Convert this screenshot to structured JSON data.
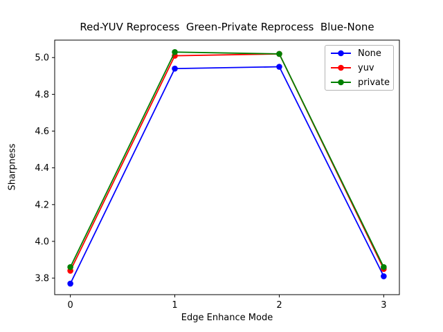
{
  "figure": {
    "background": "#ffffff",
    "spine_color": "#000000"
  },
  "chart_data": {
    "type": "line",
    "title": "Red-YUV Reprocess  Green-Private Reprocess  Blue-None",
    "xlabel": "Edge Enhance Mode",
    "ylabel": "Sharpness",
    "x": [
      0,
      1,
      2,
      3
    ],
    "series": [
      {
        "name": "None",
        "color": "#0000ff",
        "values": [
          3.77,
          4.94,
          4.95,
          3.81
        ]
      },
      {
        "name": "yuv",
        "color": "#ff0000",
        "values": [
          3.84,
          5.01,
          5.02,
          3.85
        ]
      },
      {
        "name": "private",
        "color": "#008000",
        "values": [
          3.86,
          5.03,
          5.02,
          3.86
        ]
      }
    ],
    "marker": "circle",
    "grid": false,
    "xlim": [
      -0.15,
      3.15
    ],
    "ylim": [
      3.71,
      5.095
    ],
    "xticks": {
      "values": [
        0,
        1,
        2,
        3
      ],
      "labels": [
        "0",
        "1",
        "2",
        "3"
      ]
    },
    "yticks": {
      "values": [
        3.8,
        4.0,
        4.2,
        4.4,
        4.6,
        4.8,
        5.0
      ],
      "labels": [
        "3.8",
        "4.0",
        "4.2",
        "4.4",
        "4.6",
        "4.8",
        "5.0"
      ]
    },
    "legend": {
      "position": "upper right",
      "entries": [
        "None",
        "yuv",
        "private"
      ]
    }
  }
}
